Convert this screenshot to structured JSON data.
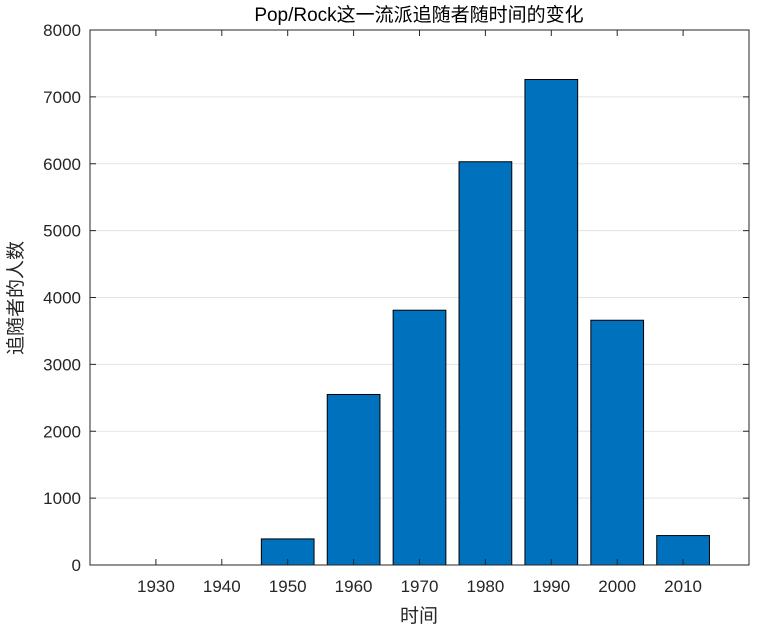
{
  "chart_data": {
    "type": "bar",
    "title": "Pop/Rock这一流派追随者随时间的变化",
    "xlabel": "时间",
    "ylabel": "追随者的人数",
    "categories": [
      "1930",
      "1940",
      "1950",
      "1960",
      "1970",
      "1980",
      "1990",
      "2000",
      "2010"
    ],
    "values": [
      0,
      0,
      390,
      2550,
      3810,
      6030,
      7260,
      3660,
      440
    ],
    "ylim": [
      0,
      8000
    ],
    "yticks": [
      "0",
      "1000",
      "2000",
      "3000",
      "4000",
      "5000",
      "6000",
      "7000",
      "8000"
    ],
    "grid": "horizontal",
    "bar_color": "#0072BD",
    "bar_edge_color": "#000000"
  }
}
